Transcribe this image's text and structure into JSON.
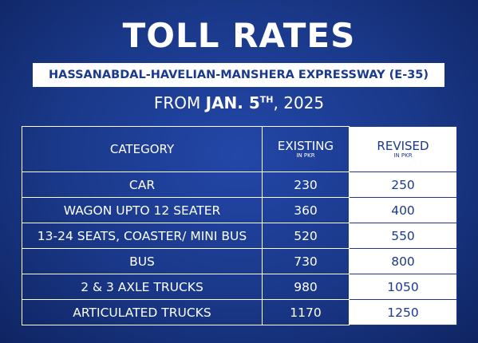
{
  "header": {
    "title": "TOLL RATES",
    "subtitle": "HASSANABDAL-HAVELIAN-MANSHERA EXPRESSWAY (E-35)",
    "date": {
      "prefix": "FROM",
      "day": "JAN. 5",
      "suffix": "TH",
      "year": ", 2025"
    }
  },
  "table": {
    "columns": [
      {
        "name": "CATEGORY"
      },
      {
        "name": "EXISTING",
        "unit": "IN PKR"
      },
      {
        "name": "REVISED",
        "unit": "IN PKR"
      }
    ],
    "rows": [
      [
        "CAR",
        230,
        250
      ],
      [
        "WAGON UPTO 12 SEATER",
        360,
        400
      ],
      [
        "13-24 SEATS, COASTER/ MINI BUS",
        520,
        550
      ],
      [
        "BUS",
        730,
        800
      ],
      [
        "2 & 3 AXLE TRUCKS",
        980,
        1050
      ],
      [
        "ARTICULATED TRUCKS",
        1170,
        1250
      ]
    ]
  }
}
